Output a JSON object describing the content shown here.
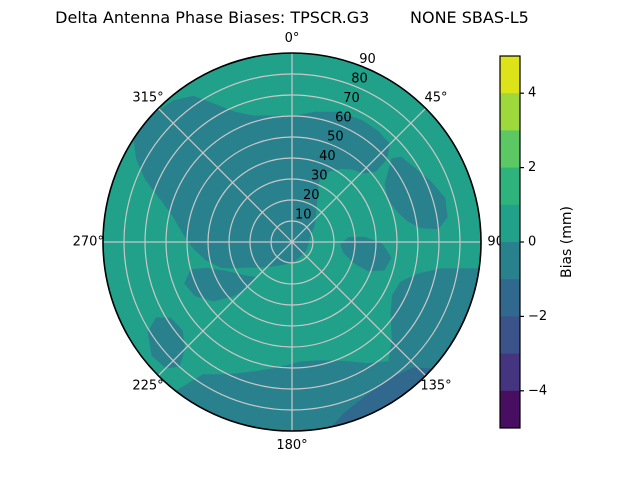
{
  "title": "Delta Antenna Phase Biases: TPSCR.G3        NONE SBAS-L5",
  "chart_data": {
    "type": "heatmap",
    "projection": "polar",
    "title": "Delta Antenna Phase Biases: TPSCR.G3        NONE SBAS-L5",
    "angular_ticks": [
      {
        "label": "0°",
        "az": 0
      },
      {
        "label": "45°",
        "az": 45
      },
      {
        "label": "90",
        "az": 90
      },
      {
        "label": "135°",
        "az": 135
      },
      {
        "label": "180°",
        "az": 180
      },
      {
        "label": "225°",
        "az": 225
      },
      {
        "label": "270°",
        "az": 270
      },
      {
        "label": "315°",
        "az": 315
      }
    ],
    "radial_ticks": [
      10,
      20,
      30,
      40,
      50,
      60,
      70,
      80,
      90
    ],
    "radial_label_azimuth_deg": 22.5,
    "radial_max": 90,
    "grid": true,
    "colors": {
      "base": "#21a189",
      "dark": "#2a818e",
      "darker": "#31698e",
      "grid": "#c8c8c8",
      "outline": "#000000"
    },
    "base_bias_bin_mm": "0 to 1",
    "regions": [
      {
        "name": "north-center-blob",
        "bias_bin_mm": "-1 to 0",
        "color": "dark",
        "points": [
          [
            250,
            36
          ],
          [
            258,
            42
          ],
          [
            266,
            47
          ],
          [
            274,
            52
          ],
          [
            282,
            58
          ],
          [
            288,
            66
          ],
          [
            293,
            76
          ],
          [
            298,
            84
          ],
          [
            303,
            90
          ],
          [
            312,
            90
          ],
          [
            320,
            88
          ],
          [
            326,
            84
          ],
          [
            331,
            75
          ],
          [
            336,
            68
          ],
          [
            343,
            63
          ],
          [
            351,
            61
          ],
          [
            0,
            60
          ],
          [
            10,
            63
          ],
          [
            20,
            66
          ],
          [
            30,
            67
          ],
          [
            38,
            67
          ],
          [
            45,
            66
          ],
          [
            49,
            60
          ],
          [
            50,
            52
          ],
          [
            46,
            47
          ],
          [
            40,
            45
          ],
          [
            34,
            42
          ],
          [
            28,
            38
          ],
          [
            24,
            32
          ],
          [
            30,
            24
          ],
          [
            40,
            18
          ],
          [
            55,
            13
          ],
          [
            75,
            9
          ],
          [
            95,
            8
          ],
          [
            120,
            8
          ],
          [
            145,
            8
          ],
          [
            170,
            9
          ],
          [
            195,
            11
          ],
          [
            215,
            14
          ],
          [
            230,
            19
          ],
          [
            242,
            26
          ],
          [
            246,
            31
          ]
        ]
      },
      {
        "name": "east-finger",
        "bias_bin_mm": "-1 to 0",
        "color": "dark",
        "points": [
          [
            50,
            62
          ],
          [
            58,
            52
          ],
          [
            66,
            50
          ],
          [
            74,
            52
          ],
          [
            80,
            56
          ],
          [
            84,
            62
          ],
          [
            85,
            70
          ],
          [
            81,
            75
          ],
          [
            74,
            76
          ],
          [
            66,
            72
          ],
          [
            58,
            68
          ],
          [
            52,
            66
          ]
        ]
      },
      {
        "name": "east-inner-blob",
        "bias_bin_mm": "-1 to 0",
        "color": "dark",
        "points": [
          [
            85,
            27
          ],
          [
            93,
            23
          ],
          [
            102,
            25
          ],
          [
            109,
            31
          ],
          [
            111,
            39
          ],
          [
            107,
            46
          ],
          [
            99,
            48
          ],
          [
            91,
            43
          ],
          [
            86,
            35
          ]
        ]
      },
      {
        "name": "southeast-south-band",
        "bias_bin_mm": "-1 to 0",
        "color": "dark",
        "points": [
          [
            98,
            90
          ],
          [
            108,
            90
          ],
          [
            118,
            90
          ],
          [
            128,
            90
          ],
          [
            138,
            90
          ],
          [
            148,
            90
          ],
          [
            158,
            90
          ],
          [
            168,
            90
          ],
          [
            178,
            90
          ],
          [
            188,
            90
          ],
          [
            198,
            90
          ],
          [
            208,
            90
          ],
          [
            218,
            90
          ],
          [
            214,
            76
          ],
          [
            206,
            70
          ],
          [
            196,
            64
          ],
          [
            186,
            60
          ],
          [
            176,
            57
          ],
          [
            166,
            58
          ],
          [
            156,
            62
          ],
          [
            148,
            68
          ],
          [
            141,
            73
          ],
          [
            134,
            66
          ],
          [
            126,
            58
          ],
          [
            118,
            54
          ],
          [
            110,
            55
          ],
          [
            104,
            62
          ],
          [
            100,
            72
          ]
        ]
      },
      {
        "name": "southwest-rim-wedge",
        "bias_bin_mm": "-1 to 0",
        "color": "dark",
        "points": [
          [
            222,
            80
          ],
          [
            225,
            72
          ],
          [
            231,
            67
          ],
          [
            238,
            68
          ],
          [
            241,
            74
          ],
          [
            238,
            81
          ],
          [
            231,
            86
          ],
          [
            225,
            85
          ]
        ]
      },
      {
        "name": "southwest-tongue",
        "bias_bin_mm": "-1 to 0",
        "color": "dark",
        "points": [
          [
            226,
            24
          ],
          [
            236,
            28
          ],
          [
            246,
            34
          ],
          [
            253,
            42
          ],
          [
            255,
            50
          ],
          [
            249,
            55
          ],
          [
            241,
            53
          ],
          [
            233,
            47
          ],
          [
            227,
            38
          ],
          [
            224,
            30
          ]
        ]
      },
      {
        "name": "south-rim-sliver",
        "bias_bin_mm": "-2 to -1",
        "color": "darker",
        "points": [
          [
            132,
            90
          ],
          [
            142,
            90
          ],
          [
            152,
            90
          ],
          [
            162,
            90
          ],
          [
            168,
            90
          ],
          [
            163,
            85
          ],
          [
            154,
            81
          ],
          [
            144,
            80
          ],
          [
            136,
            83
          ]
        ]
      }
    ],
    "colorbar": {
      "label": "Bias (mm)",
      "min": -5,
      "max": 5,
      "segment_colors_top_to_bottom": [
        "#dde319",
        "#9dd93b",
        "#5cc863",
        "#2eb37c",
        "#21a189",
        "#2a818e",
        "#31698e",
        "#3b538b",
        "#453580",
        "#470e61"
      ],
      "ticks": [
        {
          "label": "4",
          "value": 4
        },
        {
          "label": "2",
          "value": 2
        },
        {
          "label": "0",
          "value": 0
        },
        {
          "label": "−2",
          "value": -2
        },
        {
          "label": "−4",
          "value": -4
        }
      ]
    }
  }
}
